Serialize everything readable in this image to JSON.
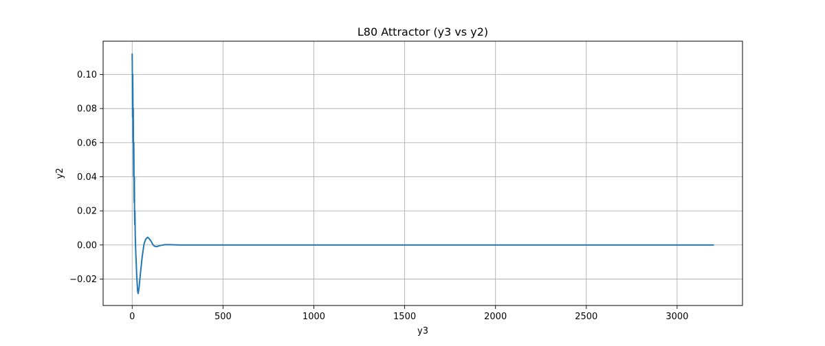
{
  "chart_data": {
    "type": "line",
    "title": "L80 Attractor (y3 vs y2)",
    "xlabel": "y3",
    "ylabel": "y2",
    "xlim": [
      -160,
      3360
    ],
    "ylim": [
      -0.0355,
      0.1195
    ],
    "xticks": [
      0,
      500,
      1000,
      1500,
      2000,
      2500,
      3000
    ],
    "xtick_labels": [
      "0",
      "500",
      "1000",
      "1500",
      "2000",
      "2500",
      "3000"
    ],
    "yticks": [
      -0.02,
      0.0,
      0.02,
      0.04,
      0.06,
      0.08,
      0.1
    ],
    "ytick_labels": [
      "−0.02",
      "0.00",
      "0.02",
      "0.04",
      "0.06",
      "0.08",
      "0.10"
    ],
    "grid": true,
    "series": [
      {
        "color": "#1f77b4",
        "points": [
          [
            0,
            0.112
          ],
          [
            1,
            0.1
          ],
          [
            2,
            0.075
          ],
          [
            3,
            0.1
          ],
          [
            4,
            0.085
          ],
          [
            5,
            0.06
          ],
          [
            6,
            0.08
          ],
          [
            7,
            0.055
          ],
          [
            8,
            0.04
          ],
          [
            9,
            0.06
          ],
          [
            10,
            0.04
          ],
          [
            11,
            0.025
          ],
          [
            12,
            0.04
          ],
          [
            13,
            0.02
          ],
          [
            14,
            0.012
          ],
          [
            15,
            0.02
          ],
          [
            17,
            0.005
          ],
          [
            20,
            -0.005
          ],
          [
            25,
            -0.018
          ],
          [
            30,
            -0.027
          ],
          [
            33,
            -0.0285
          ],
          [
            38,
            -0.025
          ],
          [
            45,
            -0.017
          ],
          [
            55,
            -0.007
          ],
          [
            65,
            0.0005
          ],
          [
            75,
            0.0035
          ],
          [
            85,
            0.0045
          ],
          [
            95,
            0.0035
          ],
          [
            105,
            0.002
          ],
          [
            115,
            0.0
          ],
          [
            125,
            -0.0008
          ],
          [
            135,
            -0.001
          ],
          [
            145,
            -0.0006
          ],
          [
            160,
            -0.0002
          ],
          [
            180,
            0.0002
          ],
          [
            200,
            0.0002
          ],
          [
            230,
            0.0001
          ],
          [
            260,
            0.0
          ],
          [
            500,
            0.0
          ],
          [
            1000,
            0.0
          ],
          [
            2000,
            0.0
          ],
          [
            3200,
            0.0
          ]
        ]
      }
    ]
  }
}
